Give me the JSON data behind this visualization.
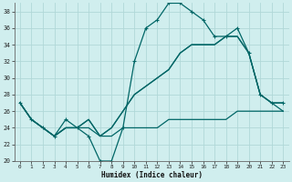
{
  "xlabel": "Humidex (Indice chaleur)",
  "background_color": "#d0eeee",
  "grid_color": "#b0d8d8",
  "line_color": "#006666",
  "xlim": [
    -0.5,
    23.5
  ],
  "ylim": [
    20,
    39
  ],
  "yticks": [
    20,
    22,
    24,
    26,
    28,
    30,
    32,
    34,
    36,
    38
  ],
  "xticks": [
    0,
    1,
    2,
    3,
    4,
    5,
    6,
    7,
    8,
    9,
    10,
    11,
    12,
    13,
    14,
    15,
    16,
    17,
    18,
    19,
    20,
    21,
    22,
    23
  ],
  "series": [
    {
      "y": [
        27,
        25,
        24,
        23,
        25,
        24,
        23,
        20,
        20,
        24,
        32,
        36,
        37,
        39,
        39,
        38,
        37,
        35,
        35,
        36,
        33,
        28,
        27,
        27
      ],
      "marker": true,
      "lw": 0.9
    },
    {
      "y": [
        27,
        25,
        24,
        23,
        24,
        24,
        25,
        23,
        24,
        26,
        28,
        29,
        30,
        31,
        33,
        34,
        34,
        34,
        35,
        35,
        33,
        28,
        27,
        27
      ],
      "marker": false,
      "lw": 0.9
    },
    {
      "y": [
        27,
        25,
        24,
        23,
        24,
        24,
        25,
        23,
        24,
        26,
        28,
        29,
        30,
        31,
        33,
        34,
        34,
        34,
        35,
        35,
        33,
        28,
        27,
        26
      ],
      "marker": false,
      "lw": 0.9
    },
    {
      "y": [
        27,
        25,
        24,
        23,
        24,
        24,
        24,
        23,
        23,
        24,
        24,
        24,
        24,
        25,
        25,
        25,
        25,
        25,
        25,
        26,
        26,
        26,
        26,
        26
      ],
      "marker": false,
      "lw": 0.9
    }
  ]
}
